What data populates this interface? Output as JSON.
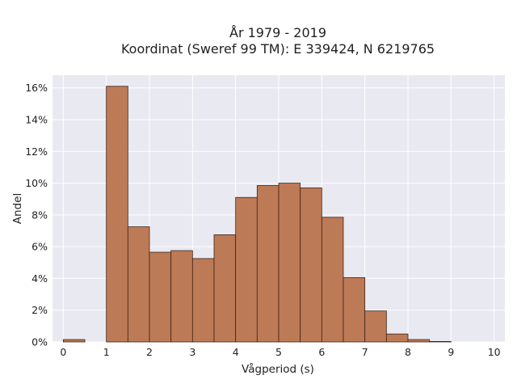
{
  "title_line1": "År 1979 - 2019",
  "title_line2": "Koordinat (Sweref 99 TM): E 339424, N 6219765",
  "chart_data": {
    "type": "bar",
    "title": "År 1979 - 2019\nKoordinat (Sweref 99 TM): E 339424, N 6219765",
    "xlabel": "Vågperiod (s)",
    "ylabel": "Andel",
    "bin_width": 0.5,
    "bins": [
      {
        "x0": 0.0,
        "x1": 0.5,
        "value": 0.0015
      },
      {
        "x0": 0.5,
        "x1": 1.0,
        "value": 0.0
      },
      {
        "x0": 1.0,
        "x1": 1.5,
        "value": 0.161
      },
      {
        "x0": 1.5,
        "x1": 2.0,
        "value": 0.0725
      },
      {
        "x0": 2.0,
        "x1": 2.5,
        "value": 0.0565
      },
      {
        "x0": 2.5,
        "x1": 3.0,
        "value": 0.0575
      },
      {
        "x0": 3.0,
        "x1": 3.5,
        "value": 0.0525
      },
      {
        "x0": 3.5,
        "x1": 4.0,
        "value": 0.0675
      },
      {
        "x0": 4.0,
        "x1": 4.5,
        "value": 0.091
      },
      {
        "x0": 4.5,
        "x1": 5.0,
        "value": 0.0985
      },
      {
        "x0": 5.0,
        "x1": 5.5,
        "value": 0.1
      },
      {
        "x0": 5.5,
        "x1": 6.0,
        "value": 0.097
      },
      {
        "x0": 6.0,
        "x1": 6.5,
        "value": 0.0785
      },
      {
        "x0": 6.5,
        "x1": 7.0,
        "value": 0.0405
      },
      {
        "x0": 7.0,
        "x1": 7.5,
        "value": 0.0195
      },
      {
        "x0": 7.5,
        "x1": 8.0,
        "value": 0.005
      },
      {
        "x0": 8.0,
        "x1": 8.5,
        "value": 0.0015
      },
      {
        "x0": 8.5,
        "x1": 9.0,
        "value": 0.0003
      }
    ],
    "xlim": [
      -0.25,
      10.25
    ],
    "ylim": [
      0,
      0.168
    ],
    "x_ticks": [
      0,
      1,
      2,
      3,
      4,
      5,
      6,
      7,
      8,
      9,
      10
    ],
    "x_tick_labels": [
      "0",
      "1",
      "2",
      "3",
      "4",
      "5",
      "6",
      "7",
      "8",
      "9",
      "10"
    ],
    "y_ticks": [
      0,
      0.02,
      0.04,
      0.06,
      0.08,
      0.1,
      0.12,
      0.14,
      0.16
    ],
    "y_tick_labels": [
      "0%",
      "2%",
      "4%",
      "6%",
      "8%",
      "10%",
      "12%",
      "14%",
      "16%"
    ],
    "grid": true,
    "legend": "none",
    "colors": {
      "bar_fill": "#bd7a56",
      "bar_stroke": "#3d2416",
      "plot_background": "#e9e9f1",
      "grid": "#ffffff"
    }
  }
}
